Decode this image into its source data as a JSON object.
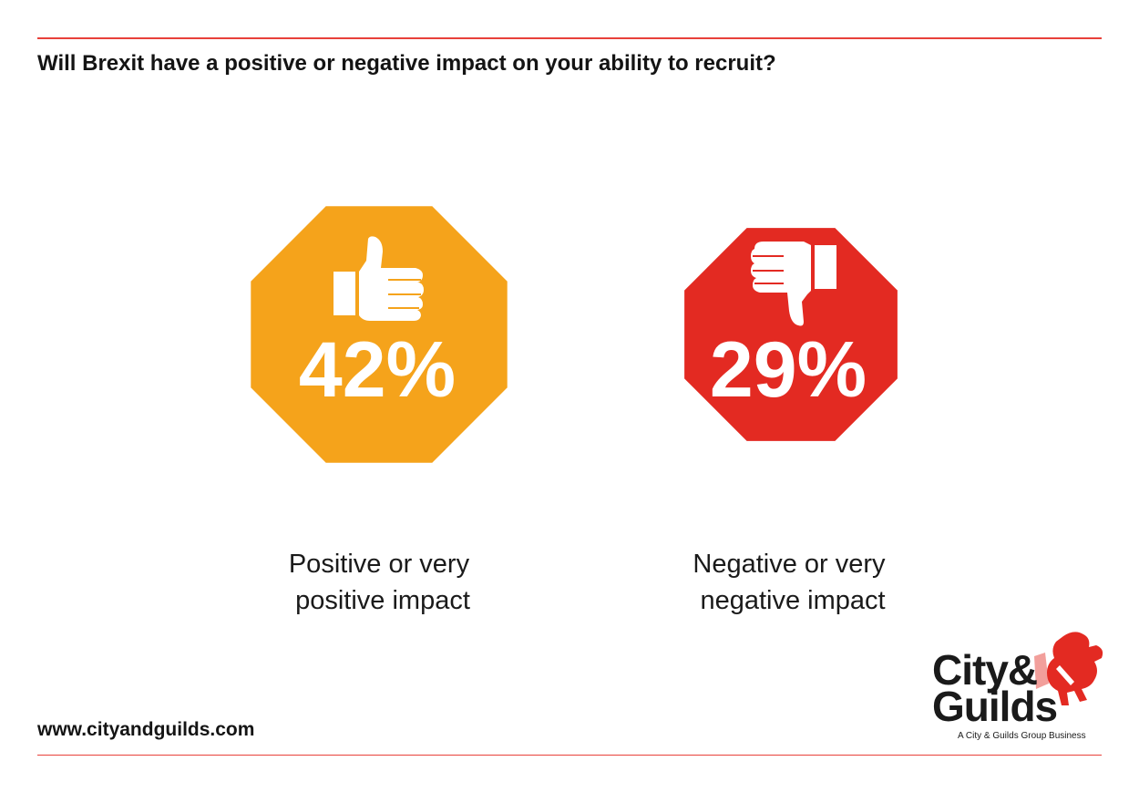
{
  "header": {
    "title": "Will Brexit have a positive or negative impact on your ability to recruit?"
  },
  "footer": {
    "url": "www.cityandguilds.com",
    "logo": {
      "line1": "City&",
      "line2": "Guilds",
      "tagline": "A City & Guilds Group Business"
    }
  },
  "colors": {
    "accent_line": "#e8413a",
    "positive": "#f5a31b",
    "negative": "#e32a22"
  },
  "chart_data": {
    "type": "other",
    "title": "Will Brexit have a positive or negative impact on your ability to recruit?",
    "unit": "%",
    "items": [
      {
        "name": "Positive or very positive impact",
        "label_lines": [
          "Positive or very",
          "positive impact"
        ],
        "value": 42,
        "value_label": "42%",
        "shape": "octagon",
        "icon": "thumbs-up-icon",
        "color": "#f5a31b"
      },
      {
        "name": "Negative or very negative impact",
        "label_lines": [
          "Negative or very",
          "negative impact"
        ],
        "value": 29,
        "value_label": "29%",
        "shape": "octagon",
        "icon": "thumbs-down-icon",
        "color": "#e32a22"
      }
    ]
  }
}
